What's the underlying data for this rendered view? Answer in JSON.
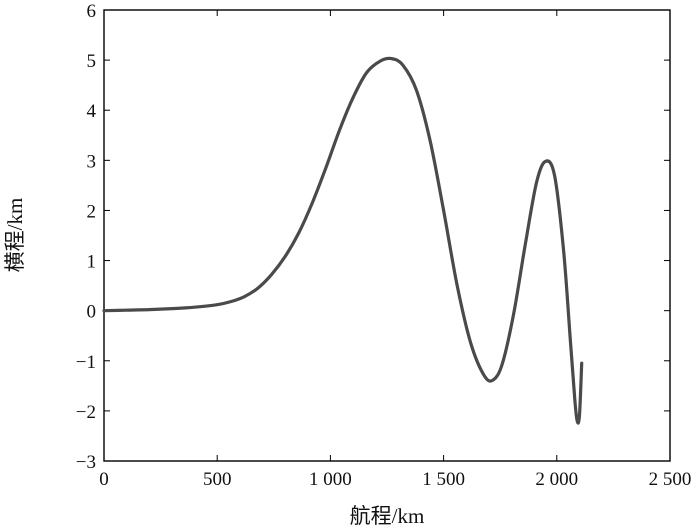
{
  "chart_data": {
    "type": "line",
    "title": "",
    "xlabel": "航程/km",
    "ylabel": "横程/km",
    "xlim": [
      0,
      2500
    ],
    "ylim": [
      -3,
      6
    ],
    "grid": false,
    "x_ticks": [
      0,
      500,
      1000,
      1500,
      2000,
      2500
    ],
    "x_tick_labels": [
      "0",
      "500",
      "1 000",
      "1 500",
      "2 000",
      "2 500"
    ],
    "y_ticks": [
      -3,
      -2,
      -1,
      0,
      1,
      2,
      3,
      4,
      5,
      6
    ],
    "y_tick_labels": [
      "−3",
      "−2",
      "−1",
      "0",
      "1",
      "2",
      "3",
      "4",
      "5",
      "6"
    ],
    "line_color": "#4a4a4a",
    "series": [
      {
        "x": [
          0,
          100,
          200,
          300,
          400,
          500,
          560,
          620,
          680,
          740,
          800,
          860,
          920,
          980,
          1040,
          1100,
          1160,
          1220,
          1270,
          1320,
          1380,
          1440,
          1500,
          1560,
          1620,
          1680,
          1720,
          1760,
          1810,
          1860,
          1910,
          1950,
          1990,
          2030,
          2060,
          2080,
          2090,
          2100,
          2110
        ],
        "y": [
          0.0,
          0.01,
          0.02,
          0.04,
          0.07,
          0.12,
          0.18,
          0.28,
          0.45,
          0.72,
          1.08,
          1.55,
          2.15,
          2.85,
          3.6,
          4.25,
          4.75,
          4.98,
          5.03,
          4.9,
          4.4,
          3.4,
          2.0,
          0.5,
          -0.65,
          -1.3,
          -1.38,
          -1.05,
          -0.05,
          1.3,
          2.55,
          2.98,
          2.7,
          1.2,
          -0.6,
          -1.8,
          -2.2,
          -2.1,
          -1.05
        ]
      }
    ]
  }
}
